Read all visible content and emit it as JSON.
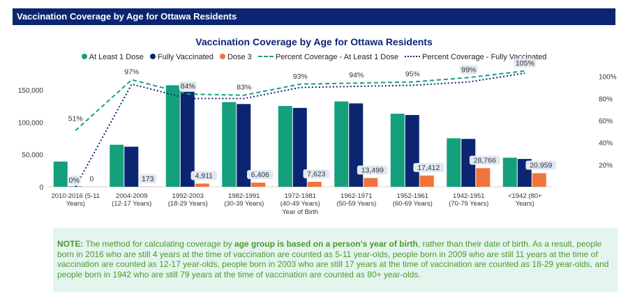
{
  "header": {
    "title": "Vaccination Coverage by Age for Ottawa Residents"
  },
  "colors": {
    "header_bg": "#0b2571",
    "at_least_1": "#14a07c",
    "fully": "#0b2571",
    "dose3": "#f0743c",
    "note_bg": "#e4f5ee",
    "note_text": "#4a9a2f"
  },
  "chart_data": {
    "type": "bar",
    "title": "Vaccination Coverage by Age for Ottawa Residents",
    "xlabel": "Year of Birth",
    "ylabel": "",
    "ylim": [
      0,
      160000
    ],
    "y2lim": [
      0,
      110
    ],
    "y_ticks": [
      "0",
      "50,000",
      "100,000",
      "150,000"
    ],
    "y2_ticks": [
      "20%",
      "40%",
      "60%",
      "80%",
      "100%"
    ],
    "categories": [
      [
        "2010-2016 (5-11",
        "Years)"
      ],
      [
        "2004-2009",
        "(12-17 Years)"
      ],
      [
        "1992-2003",
        "(18-29 Years)"
      ],
      [
        "1982-1991",
        "(30-39 Years)"
      ],
      [
        "1972-1981",
        "(40-49 Years)"
      ],
      [
        "1962-1971",
        "(50-59 Years)"
      ],
      [
        "1952-1961",
        "(60-69 Years)"
      ],
      [
        "1942-1951",
        "(70-79 Years)"
      ],
      [
        "<1942 (80+",
        "Years)"
      ]
    ],
    "legend": [
      "At Least 1 Dose",
      "Fully Vaccinated",
      "Dose 3",
      "Percent Coverage - At Least 1 Dose",
      "Percent Coverage - Fully Vaccinated"
    ],
    "series": [
      {
        "name": "At Least 1 Dose",
        "values": [
          39000,
          65000,
          157000,
          131000,
          125000,
          132000,
          113000,
          75000,
          45000
        ]
      },
      {
        "name": "Fully Vaccinated",
        "values": [
          500,
          62000,
          147000,
          128000,
          122000,
          129000,
          111000,
          74000,
          43000
        ]
      },
      {
        "name": "Dose 3",
        "values": [
          0,
          173,
          4911,
          6406,
          7623,
          13499,
          17412,
          28766,
          20959
        ]
      },
      {
        "name": "Percent Coverage - At Least 1 Dose",
        "values": [
          51,
          97,
          84,
          83,
          93,
          94,
          95,
          99,
          105
        ]
      },
      {
        "name": "Percent Coverage - Fully Vaccinated",
        "values": [
          0,
          93,
          80,
          80,
          90,
          91,
          92,
          95,
          103
        ]
      }
    ],
    "pct_labels": [
      "51%",
      "97%",
      "84%",
      "83%",
      "93%",
      "94%",
      "95%",
      "99%",
      "105%"
    ],
    "fully_pct_labels": [
      "0%"
    ],
    "dose3_labels": [
      "0",
      "173",
      "4,911",
      "6,406",
      "7,623",
      "13,499",
      "17,412",
      "28,766",
      "20,959"
    ]
  },
  "note": {
    "label": "NOTE:",
    "text1": " The method for calculating coverage by ",
    "bold": "age group is based on a person's year of birth",
    "text2": ", rather than their date of birth. As a result, people born in 2016 who are still 4 years at the time of vaccination are counted as 5-11 year-olds,  people born in 2009 who are still 11 years at the time of vaccination are counted as 12-17 year-olds, people born in 2003 who are still 17 years at the time of vaccination are counted as 18-29 year-olds, and people born in 1942 who are still 79 years at the time of vaccination are counted as 80+ year-olds."
  }
}
